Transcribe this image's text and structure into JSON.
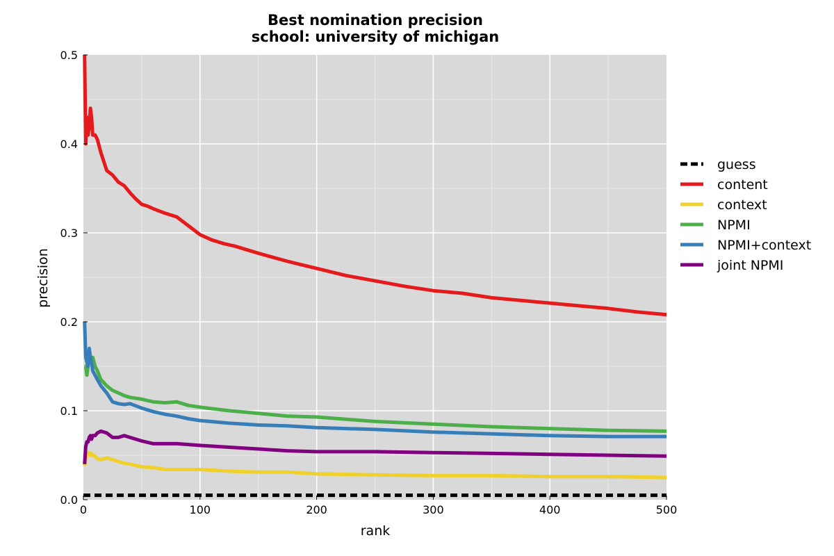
{
  "chart_data": {
    "type": "line",
    "title": "Best nomination precision",
    "subtitle": "school: university of michigan",
    "xlabel": "rank",
    "ylabel": "precision",
    "xlim": [
      0,
      500
    ],
    "ylim": [
      0,
      0.5
    ],
    "x_ticks": [
      0,
      100,
      200,
      300,
      400,
      500
    ],
    "y_ticks": [
      0.0,
      0.1,
      0.2,
      0.3,
      0.4,
      0.5
    ],
    "x_tick_labels": [
      "0",
      "100",
      "200",
      "300",
      "400",
      "500"
    ],
    "y_tick_labels": [
      "0.0",
      "0.1",
      "0.2",
      "0.3",
      "0.4",
      "0.5"
    ],
    "grid": true,
    "legend_position": "right",
    "series": [
      {
        "name": "guess",
        "color": "#000000",
        "dashed": true,
        "x": [
          0,
          500
        ],
        "y": [
          0.005,
          0.005
        ]
      },
      {
        "name": "content",
        "color": "#e41a1c",
        "dashed": false,
        "x": [
          1,
          2,
          3,
          4,
          5,
          6,
          7,
          8,
          9,
          10,
          12,
          15,
          20,
          25,
          30,
          35,
          40,
          45,
          50,
          55,
          60,
          70,
          80,
          90,
          100,
          110,
          120,
          130,
          140,
          150,
          175,
          200,
          225,
          250,
          275,
          300,
          325,
          350,
          375,
          400,
          425,
          450,
          475,
          500
        ],
        "y": [
          0.5,
          0.4,
          0.43,
          0.41,
          0.42,
          0.44,
          0.43,
          0.41,
          0.41,
          0.41,
          0.405,
          0.39,
          0.37,
          0.365,
          0.357,
          0.353,
          0.345,
          0.338,
          0.332,
          0.33,
          0.327,
          0.322,
          0.318,
          0.308,
          0.298,
          0.292,
          0.288,
          0.285,
          0.281,
          0.277,
          0.268,
          0.26,
          0.252,
          0.246,
          0.24,
          0.235,
          0.232,
          0.227,
          0.224,
          0.221,
          0.218,
          0.215,
          0.211,
          0.208
        ]
      },
      {
        "name": "context",
        "color": "#f0d12b",
        "dashed": false,
        "x": [
          1,
          2,
          3,
          4,
          5,
          6,
          7,
          8,
          10,
          12,
          15,
          20,
          25,
          30,
          35,
          40,
          50,
          60,
          70,
          80,
          90,
          100,
          125,
          150,
          175,
          200,
          250,
          300,
          350,
          400,
          450,
          500
        ],
        "y": [
          0.038,
          0.045,
          0.05,
          0.053,
          0.052,
          0.05,
          0.052,
          0.05,
          0.049,
          0.046,
          0.045,
          0.047,
          0.045,
          0.043,
          0.041,
          0.04,
          0.037,
          0.036,
          0.034,
          0.034,
          0.034,
          0.034,
          0.032,
          0.031,
          0.031,
          0.029,
          0.028,
          0.027,
          0.027,
          0.026,
          0.026,
          0.025
        ]
      },
      {
        "name": "NPMI",
        "color": "#4daf4a",
        "dashed": false,
        "x": [
          1,
          2,
          3,
          4,
          5,
          6,
          7,
          8,
          10,
          12,
          15,
          20,
          25,
          30,
          35,
          40,
          50,
          60,
          70,
          80,
          90,
          100,
          125,
          150,
          175,
          200,
          250,
          300,
          350,
          400,
          450,
          500
        ],
        "y": [
          0.15,
          0.15,
          0.14,
          0.15,
          0.16,
          0.16,
          0.155,
          0.16,
          0.15,
          0.145,
          0.135,
          0.128,
          0.123,
          0.12,
          0.117,
          0.115,
          0.113,
          0.11,
          0.109,
          0.11,
          0.106,
          0.104,
          0.1,
          0.097,
          0.094,
          0.093,
          0.088,
          0.085,
          0.082,
          0.08,
          0.078,
          0.077
        ]
      },
      {
        "name": "NPMI+context",
        "color": "#377eb8",
        "dashed": false,
        "x": [
          1,
          2,
          3,
          4,
          5,
          6,
          7,
          8,
          10,
          12,
          15,
          20,
          25,
          30,
          35,
          40,
          50,
          60,
          70,
          80,
          90,
          100,
          125,
          150,
          175,
          200,
          250,
          300,
          350,
          400,
          450,
          500
        ],
        "y": [
          0.2,
          0.16,
          0.155,
          0.15,
          0.17,
          0.16,
          0.155,
          0.145,
          0.14,
          0.135,
          0.128,
          0.12,
          0.11,
          0.108,
          0.107,
          0.108,
          0.103,
          0.099,
          0.096,
          0.094,
          0.091,
          0.089,
          0.086,
          0.084,
          0.083,
          0.081,
          0.079,
          0.076,
          0.074,
          0.072,
          0.071,
          0.071
        ]
      },
      {
        "name": "joint NPMI",
        "color": "#800080",
        "dashed": false,
        "x": [
          1,
          2,
          3,
          4,
          5,
          6,
          7,
          8,
          10,
          12,
          15,
          20,
          25,
          30,
          35,
          40,
          50,
          60,
          70,
          80,
          90,
          100,
          125,
          150,
          175,
          200,
          250,
          300,
          350,
          400,
          450,
          500
        ],
        "y": [
          0.04,
          0.06,
          0.065,
          0.065,
          0.07,
          0.072,
          0.068,
          0.072,
          0.072,
          0.075,
          0.077,
          0.075,
          0.07,
          0.07,
          0.072,
          0.07,
          0.066,
          0.063,
          0.063,
          0.063,
          0.062,
          0.061,
          0.059,
          0.057,
          0.055,
          0.054,
          0.054,
          0.053,
          0.052,
          0.051,
          0.05,
          0.049
        ]
      }
    ]
  }
}
